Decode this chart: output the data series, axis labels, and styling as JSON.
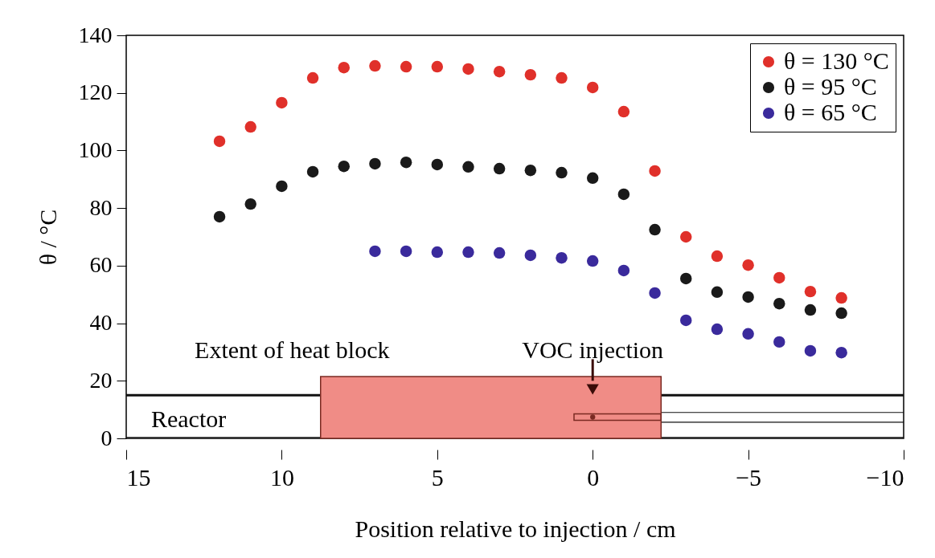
{
  "chart_data": {
    "type": "scatter",
    "xlabel": "Position relative to injection / cm",
    "ylabel": "θ / °C",
    "x": [
      12,
      11,
      10,
      9,
      8,
      7,
      6,
      5,
      4,
      3,
      2,
      1,
      0,
      -1,
      -2,
      -3,
      -4,
      -5,
      -6,
      -7,
      -8
    ],
    "series": [
      {
        "name": "θ = 130 °C",
        "color": "#e0302a",
        "values": [
          103.2,
          108.2,
          116.6,
          125.2,
          128.8,
          129.4,
          129.1,
          129.1,
          128.3,
          127.4,
          126.3,
          125.2,
          121.9,
          113.5,
          92.9,
          70.0,
          63.3,
          60.2,
          55.8,
          51.0,
          48.8
        ]
      },
      {
        "name": "θ = 95 °C",
        "color": "#1a1a1a",
        "values": [
          77.0,
          81.4,
          87.6,
          92.6,
          94.5,
          95.4,
          95.9,
          95.1,
          94.3,
          93.7,
          93.1,
          92.3,
          90.4,
          84.8,
          72.5,
          55.5,
          50.8,
          49.1,
          46.8,
          44.6,
          43.5
        ]
      },
      {
        "name": "θ = 65 °C",
        "color": "#3a2a9c",
        "x": [
          7,
          6,
          5,
          4,
          3,
          2,
          1,
          0,
          -1,
          -2,
          -3,
          -4,
          -5,
          -6,
          -7,
          -8
        ],
        "values": [
          65.0,
          65.0,
          64.7,
          64.7,
          64.4,
          63.6,
          62.7,
          61.6,
          58.3,
          50.5,
          41.0,
          37.9,
          36.3,
          33.5,
          30.4,
          29.8
        ]
      }
    ],
    "xlim": [
      15,
      -10
    ],
    "xticks": [
      15,
      10,
      5,
      0,
      {
        "value": -5,
        "label": "−5"
      },
      {
        "value": -10,
        "label": "−10"
      }
    ],
    "ylim": [
      0,
      140
    ],
    "yticks": [
      0,
      20,
      40,
      60,
      80,
      100,
      120,
      140
    ],
    "annotations": [
      "Extent of heat block",
      "VOC injection",
      "Reactor"
    ],
    "ref_lines": [
      {
        "axis": "y",
        "value": 15,
        "color": "#111111"
      }
    ],
    "legend": "top right",
    "marker": "circle",
    "grid": false
  }
}
